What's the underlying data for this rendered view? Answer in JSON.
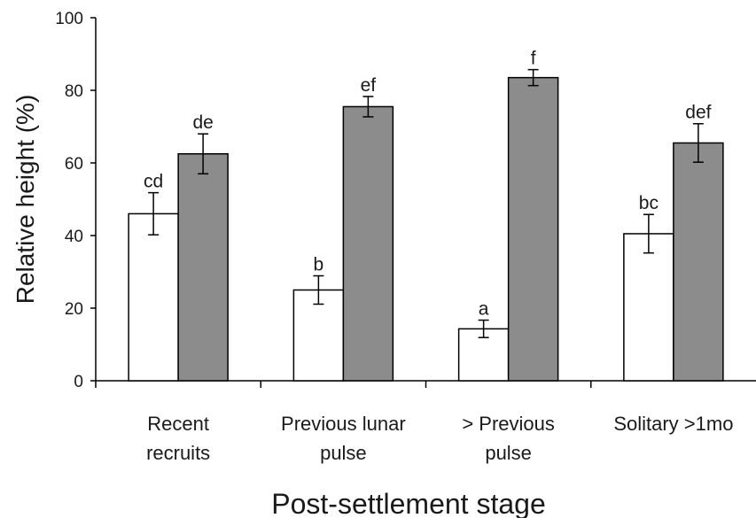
{
  "chart_data": {
    "type": "bar",
    "title": "",
    "xlabel": "Post-settlement stage",
    "ylabel": "Relative height (%)",
    "ylim": [
      0,
      100
    ],
    "yticks": [
      "0",
      "20",
      "40",
      "60",
      "80",
      "100"
    ],
    "grid": false,
    "legend": "none",
    "categories": [
      [
        "Recent",
        "recruits"
      ],
      [
        "Previous lunar",
        "pulse"
      ],
      [
        "> Previous",
        "pulse"
      ],
      [
        "Solitary >1mo"
      ]
    ],
    "series": [
      {
        "fill": "#ffffff",
        "values": [
          46,
          25,
          14.3,
          40.5
        ],
        "errors": [
          5.8,
          3.9,
          2.4,
          5.3
        ],
        "sig_labels": [
          "cd",
          "b",
          "a",
          "bc"
        ]
      },
      {
        "fill": "#8c8c8c",
        "values": [
          62.5,
          75.5,
          83.5,
          65.5
        ],
        "errors": [
          5.5,
          2.8,
          2.2,
          5.3
        ],
        "sig_labels": [
          "de",
          "ef",
          "f",
          "def"
        ]
      }
    ]
  }
}
